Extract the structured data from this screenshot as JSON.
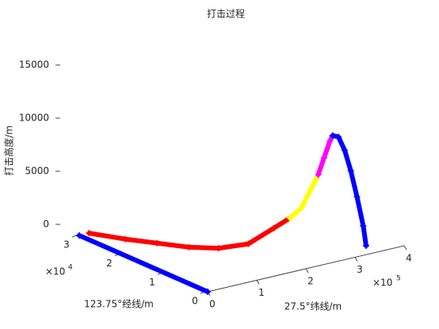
{
  "chart_data": {
    "type": "line3d",
    "title": "打击过程",
    "xlabel": "27.5°纬线/m",
    "ylabel": "123.75°经线/m",
    "zlabel": "打击高度/m",
    "xlim": [
      0,
      400000
    ],
    "ylim": [
      0,
      30000
    ],
    "zlim": [
      0,
      15000
    ],
    "xticks": [
      0,
      {
        "value": 100000,
        "label": "1"
      },
      {
        "value": 200000,
        "label": "2"
      },
      {
        "value": 300000,
        "label": "3"
      },
      {
        "value": 400000,
        "label": "4"
      }
    ],
    "yticks": [
      0,
      {
        "value": 10000,
        "label": "1"
      },
      {
        "value": 20000,
        "label": "2"
      },
      {
        "value": 30000,
        "label": "3"
      }
    ],
    "zticks": [
      0,
      5000,
      10000,
      15000
    ],
    "x_exponent": {
      "base": "×10",
      "power": "5"
    },
    "y_exponent": {
      "base": "×10",
      "power": "4"
    },
    "series": [
      {
        "color": "#0000ff",
        "x": [
          0,
          0
        ],
        "y": [
          30000,
          0
        ],
        "z": [
          0,
          0
        ]
      },
      {
        "color": "#ff0000",
        "x": [
          20000,
          50000,
          80000,
          110000,
          140000,
          170000,
          200000,
          220000
        ],
        "y": [
          30000,
          25000,
          21000,
          17000,
          13500,
          10000,
          7500,
          6000
        ],
        "z": [
          0,
          0,
          0,
          0,
          200,
          900,
          2500,
          3500
        ]
      },
      {
        "color": "#ffff00",
        "x": [
          220000,
          235000,
          250000,
          260000
        ],
        "y": [
          6000,
          5000,
          4500,
          4000
        ],
        "z": [
          3500,
          4500,
          6200,
          7500
        ]
      },
      {
        "color": "#ff00ff",
        "x": [
          260000,
          270000,
          280000,
          285000
        ],
        "y": [
          4000,
          3800,
          3600,
          3500
        ],
        "z": [
          7500,
          9000,
          10500,
          11000
        ]
      },
      {
        "color": "#0000ff",
        "x": [
          285000,
          295000,
          305000,
          315000,
          325000,
          335000,
          340000
        ],
        "y": [
          3500,
          3300,
          3000,
          2700,
          2400,
          2100,
          2000
        ],
        "z": [
          11000,
          10800,
          9500,
          7500,
          5000,
          2200,
          300
        ]
      }
    ]
  }
}
